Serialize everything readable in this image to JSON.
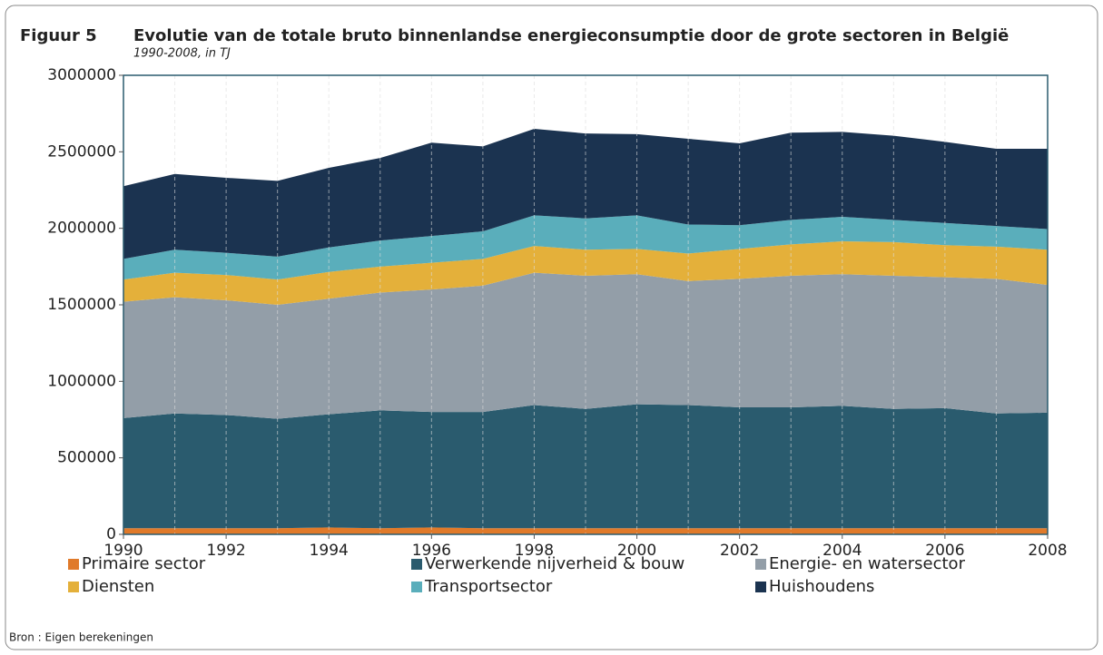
{
  "chart_data": {
    "type": "stacked_area",
    "figure_label": "Figuur 5",
    "title": "Evolutie van de totale bruto binnenlandse energieconsumptie door de grote sectoren in België",
    "subtitle": "1990-2008, in TJ",
    "source": "Bron : Eigen berekeningen",
    "x": [
      1990,
      1991,
      1992,
      1993,
      1994,
      1995,
      1996,
      1997,
      1998,
      1999,
      2000,
      2001,
      2002,
      2003,
      2004,
      2005,
      2006,
      2007,
      2008
    ],
    "xlim": [
      1990,
      2008
    ],
    "xticks": [
      1990,
      1992,
      1994,
      1996,
      1998,
      2000,
      2002,
      2004,
      2006,
      2008
    ],
    "ylim": [
      0,
      3000000
    ],
    "yticks": [
      0,
      500000,
      1000000,
      1500000,
      2000000,
      2500000,
      3000000
    ],
    "grid": true,
    "series": [
      {
        "name": "Primaire sector",
        "color": "#e07a2a",
        "values": [
          40000,
          40000,
          40000,
          40000,
          45000,
          40000,
          45000,
          40000,
          40000,
          40000,
          40000,
          40000,
          40000,
          40000,
          40000,
          40000,
          40000,
          40000,
          40000
        ]
      },
      {
        "name": "Verwerkende nijverheid & bouw",
        "color": "#2a5b6e",
        "values": [
          720000,
          750000,
          740000,
          715000,
          740000,
          770000,
          755000,
          760000,
          805000,
          780000,
          810000,
          805000,
          790000,
          790000,
          800000,
          780000,
          785000,
          750000,
          755000
        ]
      },
      {
        "name": "Energie- en watersector",
        "color": "#939ea8",
        "values": [
          760000,
          760000,
          750000,
          745000,
          755000,
          770000,
          800000,
          825000,
          865000,
          870000,
          850000,
          810000,
          840000,
          860000,
          860000,
          870000,
          855000,
          880000,
          835000
        ]
      },
      {
        "name": "Diensten",
        "color": "#e4b03a",
        "values": [
          145000,
          160000,
          165000,
          165000,
          175000,
          170000,
          175000,
          175000,
          175000,
          170000,
          165000,
          180000,
          195000,
          205000,
          215000,
          220000,
          210000,
          210000,
          230000
        ]
      },
      {
        "name": "Transportsector",
        "color": "#5aaebb",
        "values": [
          135000,
          150000,
          145000,
          150000,
          160000,
          170000,
          175000,
          180000,
          200000,
          205000,
          220000,
          190000,
          155000,
          160000,
          160000,
          145000,
          145000,
          135000,
          135000
        ]
      },
      {
        "name": "Huishoudens",
        "color": "#1b3350",
        "values": [
          475000,
          495000,
          490000,
          495000,
          520000,
          540000,
          610000,
          555000,
          565000,
          555000,
          530000,
          560000,
          535000,
          570000,
          555000,
          550000,
          530000,
          505000,
          525000
        ]
      }
    ]
  }
}
